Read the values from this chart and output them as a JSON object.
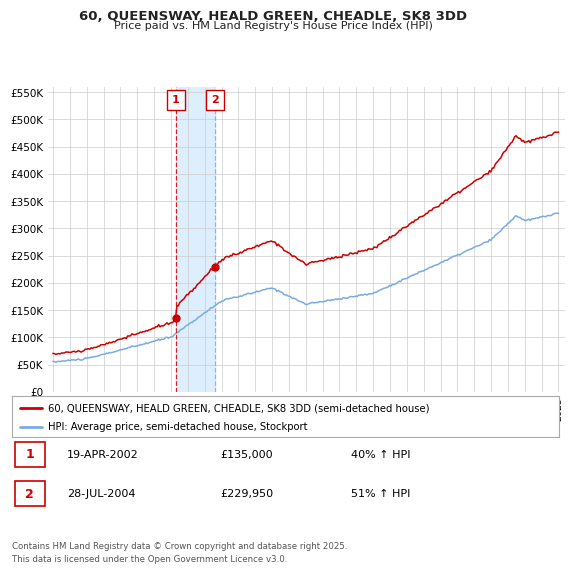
{
  "title": "60, QUEENSWAY, HEALD GREEN, CHEADLE, SK8 3DD",
  "subtitle": "Price paid vs. HM Land Registry's House Price Index (HPI)",
  "legend_line1": "60, QUEENSWAY, HEALD GREEN, CHEADLE, SK8 3DD (semi-detached house)",
  "legend_line2": "HPI: Average price, semi-detached house, Stockport",
  "footer": "Contains HM Land Registry data © Crown copyright and database right 2025.\nThis data is licensed under the Open Government Licence v3.0.",
  "sale1_date": "19-APR-2002",
  "sale1_price": "£135,000",
  "sale1_hpi": "40% ↑ HPI",
  "sale2_date": "28-JUL-2004",
  "sale2_price": "£229,950",
  "sale2_hpi": "51% ↑ HPI",
  "red_color": "#cc0000",
  "blue_color": "#7aace0",
  "shade_color": "#ddeeff",
  "grid_color": "#cccccc",
  "background_color": "#ffffff",
  "sale1_year": 2002.3,
  "sale2_year": 2004.6,
  "ylim": [
    0,
    560000
  ],
  "yticks": [
    0,
    50000,
    100000,
    150000,
    200000,
    250000,
    300000,
    350000,
    400000,
    450000,
    500000,
    550000
  ],
  "x_start_year": 1995,
  "x_end_year": 2025
}
